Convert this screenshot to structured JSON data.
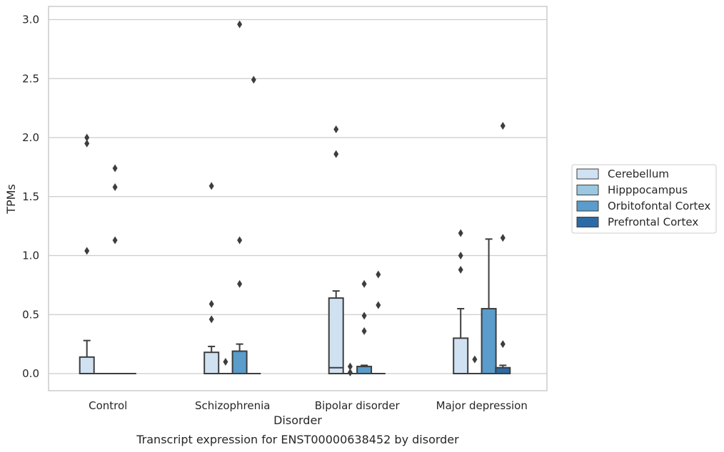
{
  "chart_data": {
    "type": "box",
    "title": "Transcript expression for ENST00000638452 by disorder",
    "xlabel": "Disorder",
    "ylabel": "TPMs",
    "ylim": [
      -0.15,
      3.12
    ],
    "yticks": [
      "0.0",
      "0.5",
      "1.0",
      "1.5",
      "2.0",
      "2.5",
      "3.0"
    ],
    "categories": [
      "Control",
      "Schizophrenia",
      "Bipolar disorder",
      "Major depression"
    ],
    "grid": "horizontal",
    "legend_position": "right",
    "series": [
      {
        "name": "Cerebellum",
        "color": "#d0e1f2",
        "boxes": [
          {
            "q1": 0.0,
            "median": 0.0,
            "q3": 0.14,
            "whisker_low": 0.0,
            "whisker_high": 0.28,
            "outliers": [
              1.04,
              1.95,
              2.0
            ]
          },
          {
            "q1": 0.0,
            "median": 0.0,
            "q3": 0.18,
            "whisker_low": 0.0,
            "whisker_high": 0.23,
            "outliers": [
              0.46,
              0.59,
              1.59
            ]
          },
          {
            "q1": 0.0,
            "median": 0.05,
            "q3": 0.64,
            "whisker_low": 0.0,
            "whisker_high": 0.7,
            "outliers": [
              1.86,
              2.07
            ]
          },
          {
            "q1": 0.0,
            "median": 0.0,
            "q3": 0.3,
            "whisker_low": 0.0,
            "whisker_high": 0.55,
            "outliers": [
              0.88,
              1.0,
              1.19
            ]
          }
        ]
      },
      {
        "name": "Hipppocampus",
        "color": "#9ac8e0",
        "boxes": [
          {
            "q1": 0.0,
            "median": 0.0,
            "q3": 0.0,
            "whisker_low": 0.0,
            "whisker_high": 0.0,
            "outliers": []
          },
          {
            "q1": 0.0,
            "median": 0.0,
            "q3": 0.0,
            "whisker_low": 0.0,
            "whisker_high": 0.0,
            "outliers": [
              0.1
            ]
          },
          {
            "q1": 0.0,
            "median": 0.0,
            "q3": 0.0,
            "whisker_low": 0.0,
            "whisker_high": 0.0,
            "outliers": [
              0.01,
              0.06
            ]
          },
          {
            "q1": 0.0,
            "median": 0.0,
            "q3": 0.0,
            "whisker_low": 0.0,
            "whisker_high": 0.0,
            "outliers": [
              0.12
            ]
          }
        ]
      },
      {
        "name": "Orbitofontal Cortex",
        "color": "#5a9ccb",
        "boxes": [
          {
            "q1": 0.0,
            "median": 0.0,
            "q3": 0.0,
            "whisker_low": 0.0,
            "whisker_high": 0.0,
            "outliers": [
              1.13,
              1.58,
              1.74
            ]
          },
          {
            "q1": 0.0,
            "median": 0.0,
            "q3": 0.19,
            "whisker_low": 0.0,
            "whisker_high": 0.25,
            "outliers": [
              0.76,
              1.13,
              2.96
            ]
          },
          {
            "q1": 0.0,
            "median": 0.0,
            "q3": 0.06,
            "whisker_low": 0.0,
            "whisker_high": 0.07,
            "outliers": [
              0.36,
              0.49,
              0.76
            ]
          },
          {
            "q1": 0.0,
            "median": 0.0,
            "q3": 0.55,
            "whisker_low": 0.0,
            "whisker_high": 1.14,
            "outliers": []
          }
        ]
      },
      {
        "name": "Prefrontal Cortex",
        "color": "#2c6ba5",
        "boxes": [
          {
            "q1": 0.0,
            "median": 0.0,
            "q3": 0.0,
            "whisker_low": 0.0,
            "whisker_high": 0.0,
            "outliers": []
          },
          {
            "q1": 0.0,
            "median": 0.0,
            "q3": 0.0,
            "whisker_low": 0.0,
            "whisker_high": 0.0,
            "outliers": [
              2.49
            ]
          },
          {
            "q1": 0.0,
            "median": 0.0,
            "q3": 0.0,
            "whisker_low": 0.0,
            "whisker_high": 0.0,
            "outliers": [
              0.58,
              0.84
            ]
          },
          {
            "q1": 0.0,
            "median": 0.0,
            "q3": 0.05,
            "whisker_low": 0.0,
            "whisker_high": 0.07,
            "outliers": [
              0.25,
              1.15,
              2.1
            ]
          }
        ]
      }
    ]
  },
  "colors": {
    "grid": "#cccccc",
    "frame": "#cccccc",
    "box_edge": "#3d3d3d",
    "outlier": "#3d3d3d"
  }
}
